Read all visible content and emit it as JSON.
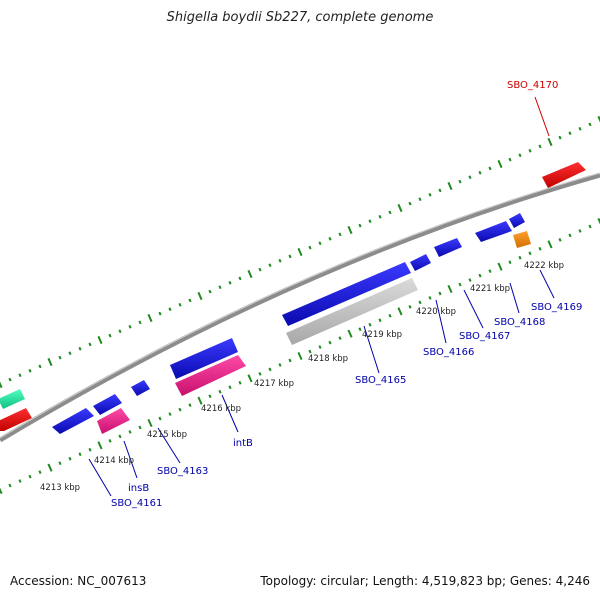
{
  "title": "Shigella boydii Sb227, complete genome",
  "accession_label": "Accession: NC_007613",
  "summary_label": "Topology: circular; Length: 4,519,823 bp; Genes: 4,246",
  "kbp_labels": [
    "4213 kbp",
    "4214 kbp",
    "4215 kbp",
    "4216 kbp",
    "4217 kbp",
    "4218 kbp",
    "4219 kbp",
    "4220 kbp",
    "4221 kbp",
    "4222 kbp"
  ],
  "gene_labels": [
    {
      "text": "SBO_4170",
      "color": "#cc0000"
    },
    {
      "text": "SBO_4169",
      "color": "#0000aa"
    },
    {
      "text": "SBO_4168",
      "color": "#0000aa"
    },
    {
      "text": "SBO_4167",
      "color": "#0000aa"
    },
    {
      "text": "SBO_4166",
      "color": "#0000aa"
    },
    {
      "text": "SBO_4165",
      "color": "#0000aa"
    },
    {
      "text": "intB",
      "color": "#0000aa"
    },
    {
      "text": "SBO_4163",
      "color": "#0000aa"
    },
    {
      "text": "insB",
      "color": "#0000aa"
    },
    {
      "text": "SBO_4161",
      "color": "#0000aa"
    }
  ],
  "colors": {
    "cds": "#1a1adb",
    "trna_red": "#e81010",
    "pink": "#e8208a",
    "gray": "#c0c0c0",
    "orange": "#f08c10",
    "teal": "#20e8a0",
    "tick": "#1f8a1f",
    "backbone": "#8c8c8c"
  }
}
